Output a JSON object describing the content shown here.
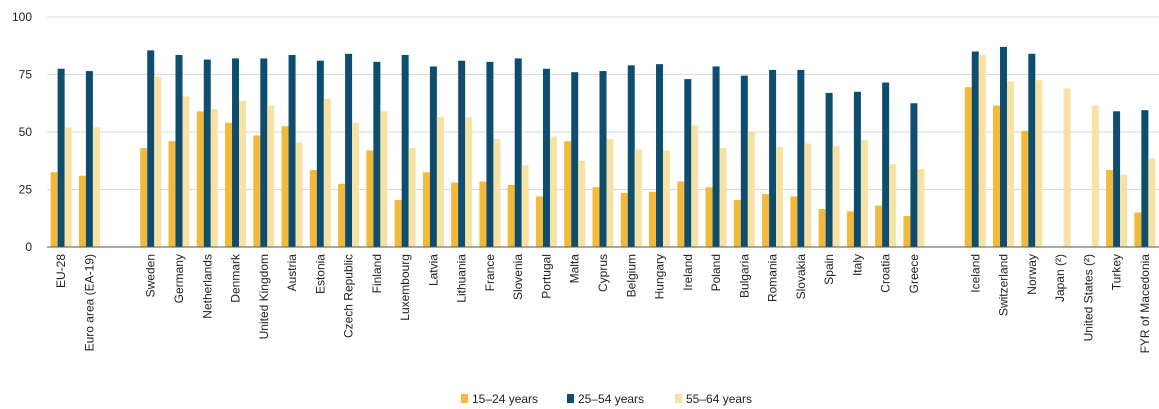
{
  "chart_data": {
    "type": "bar",
    "title": "",
    "xlabel": "",
    "ylabel": "",
    "ylim": [
      0,
      100
    ],
    "yticks": [
      0,
      25,
      50,
      75,
      100
    ],
    "grid": true,
    "legend_position": "bottom-center",
    "categories": [
      "EU-28",
      "Euro area (EA-19)",
      "Sweden",
      "Germany",
      "Netherlands",
      "Denmark",
      "United Kingdom",
      "Austria",
      "Estonia",
      "Czech Republic",
      "Finland",
      "Luxembourg",
      "Latvia",
      "Lithuania",
      "France",
      "Slovenia",
      "Portugal",
      "Malta",
      "Cyprus",
      "Belgium",
      "Hungary",
      "Ireland",
      "Poland",
      "Bulgaria",
      "Romania",
      "Slovakia",
      "Spain",
      "Italy",
      "Croatia",
      "Greece",
      "Iceland",
      "Switzerland",
      "Norway",
      "Japan (²)",
      "United States (²)",
      "Turkey",
      "FYR of Macedonia"
    ],
    "groups": [
      {
        "categories": [
          "EU-28",
          "Euro area (EA-19)"
        ]
      },
      {
        "categories": [
          "Sweden",
          "Germany",
          "Netherlands",
          "Denmark",
          "United Kingdom",
          "Austria",
          "Estonia",
          "Czech Republic",
          "Finland",
          "Luxembourg",
          "Latvia",
          "Lithuania",
          "France",
          "Slovenia",
          "Portugal",
          "Malta",
          "Cyprus",
          "Belgium",
          "Hungary",
          "Ireland",
          "Poland",
          "Bulgaria",
          "Romania",
          "Slovakia",
          "Spain",
          "Italy",
          "Croatia",
          "Greece"
        ]
      },
      {
        "categories": [
          "Iceland",
          "Switzerland",
          "Norway",
          "Japan (²)",
          "United States (²)",
          "Turkey",
          "FYR of Macedonia"
        ]
      }
    ],
    "series": [
      {
        "name": "15–24 years",
        "color": "#F2B93B",
        "values": [
          32.5,
          31,
          43,
          46,
          59,
          54,
          48.5,
          52.5,
          33.5,
          27.5,
          42,
          20.5,
          32.5,
          28,
          28.5,
          27,
          22,
          46,
          26,
          23.5,
          24,
          28.5,
          26,
          20.5,
          23,
          22,
          16.5,
          15.5,
          18,
          13.5,
          69.5,
          61.5,
          50.5,
          null,
          null,
          33.5,
          15
        ]
      },
      {
        "name": "25–54 years",
        "color": "#0E4D6E",
        "values": [
          77.5,
          76.5,
          85.5,
          83.5,
          81.5,
          82,
          82,
          83.5,
          81,
          84,
          80.5,
          83.5,
          78.5,
          81,
          80.5,
          82,
          77.5,
          76,
          76.5,
          79,
          79.5,
          73,
          78.5,
          74.5,
          77,
          77,
          67,
          67.5,
          71.5,
          62.5,
          85,
          87,
          84,
          null,
          null,
          59,
          59.5
        ]
      },
      {
        "name": "55–64 years",
        "color": "#F7E2A6",
        "values": [
          52,
          52,
          74,
          65.5,
          60,
          63.5,
          61.5,
          45.5,
          64.5,
          54,
          59,
          43,
          56.5,
          56.5,
          47,
          35.5,
          48,
          37.5,
          47,
          42.5,
          42,
          53,
          43,
          50,
          43.5,
          45,
          44,
          46.5,
          36,
          34,
          83.5,
          72,
          72.5,
          69,
          61.5,
          31.5,
          38.5
        ]
      }
    ]
  }
}
